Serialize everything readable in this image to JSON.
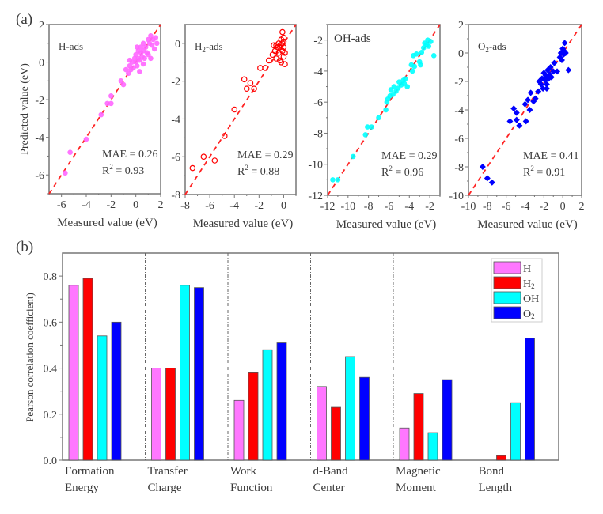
{
  "panel_labels": {
    "a": "(a)",
    "b": "(b)"
  },
  "chart_data": [
    {
      "type": "scatter",
      "title": "H-ads",
      "xlabel": "Measured value (eV)",
      "ylabel": "Predicted value (eV)",
      "xlim": [
        -7,
        2
      ],
      "ylim": [
        -7,
        2
      ],
      "xticks": [
        -6,
        -4,
        -2,
        0,
        2
      ],
      "yticks": [
        -6,
        -4,
        -2,
        0,
        2
      ],
      "marker": "filled-circle",
      "color": "#ff66ff",
      "annotation": {
        "mae": "MAE = 0.26",
        "r2_prefix": "R",
        "r2_sup": "2",
        "r2_value": " = 0.93"
      },
      "points": [
        [
          -5.7,
          -5.9
        ],
        [
          -5.3,
          -4.8
        ],
        [
          -4.0,
          -4.1
        ],
        [
          -2.8,
          -2.8
        ],
        [
          -2.3,
          -2.2
        ],
        [
          -2.0,
          -2.2
        ],
        [
          -2.0,
          -1.8
        ],
        [
          -1.2,
          -1.0
        ],
        [
          -1.0,
          -1.2
        ],
        [
          -0.8,
          -0.4
        ],
        [
          -0.6,
          -0.6
        ],
        [
          -0.5,
          -0.2
        ],
        [
          -0.4,
          -0.4
        ],
        [
          -0.3,
          0.0
        ],
        [
          -0.2,
          -0.3
        ],
        [
          -0.1,
          0.2
        ],
        [
          0.0,
          0.0
        ],
        [
          0.0,
          0.4
        ],
        [
          0.1,
          -0.2
        ],
        [
          0.2,
          0.2
        ],
        [
          0.2,
          0.6
        ],
        [
          0.3,
          0.1
        ],
        [
          0.4,
          0.5
        ],
        [
          0.4,
          0.8
        ],
        [
          0.5,
          0.3
        ],
        [
          0.6,
          0.6
        ],
        [
          0.6,
          1.0
        ],
        [
          0.7,
          0.2
        ],
        [
          0.8,
          0.8
        ],
        [
          0.9,
          0.5
        ],
        [
          1.0,
          1.2
        ],
        [
          1.0,
          0.4
        ],
        [
          1.1,
          1.0
        ],
        [
          1.2,
          1.4
        ],
        [
          1.3,
          0.9
        ],
        [
          1.4,
          1.2
        ],
        [
          1.5,
          0.7
        ],
        [
          1.6,
          1.3
        ],
        [
          1.7,
          1.0
        ],
        [
          0.3,
          -0.5
        ],
        [
          -0.5,
          0.1
        ],
        [
          0.1,
          0.8
        ],
        [
          0.6,
          -0.1
        ],
        [
          1.2,
          0.2
        ]
      ]
    },
    {
      "type": "scatter",
      "title": "H2-ads",
      "title_main": "H",
      "title_sub": "2",
      "title_rest": "-ads",
      "xlabel": "Measured value (eV)",
      "xlim": [
        -8,
        1
      ],
      "ylim": [
        -8,
        1
      ],
      "xticks": [
        -8,
        -6,
        -4,
        -2,
        0
      ],
      "yticks": [
        -8,
        -6,
        -4,
        -2,
        0
      ],
      "marker": "open-circle",
      "color": "#ff0000",
      "annotation": {
        "mae": "MAE = 0.29",
        "r2_prefix": "R",
        "r2_sup": "2",
        "r2_value": " = 0.88"
      },
      "points": [
        [
          -7.4,
          -6.6
        ],
        [
          -6.5,
          -6.0
        ],
        [
          -5.6,
          -6.2
        ],
        [
          -4.8,
          -4.9
        ],
        [
          -4.0,
          -3.5
        ],
        [
          -3.2,
          -1.9
        ],
        [
          -3.0,
          -2.4
        ],
        [
          -2.7,
          -2.1
        ],
        [
          -2.4,
          -2.4
        ],
        [
          -1.9,
          -1.3
        ],
        [
          -1.5,
          -1.3
        ],
        [
          -1.2,
          -0.9
        ],
        [
          -0.9,
          -0.6
        ],
        [
          -0.8,
          -0.1
        ],
        [
          -0.7,
          -0.4
        ],
        [
          -0.6,
          -0.8
        ],
        [
          -0.5,
          -0.2
        ],
        [
          -0.4,
          0.0
        ],
        [
          -0.4,
          -0.5
        ],
        [
          -0.3,
          -0.9
        ],
        [
          -0.3,
          -0.2
        ],
        [
          -0.2,
          0.2
        ],
        [
          -0.2,
          -1.0
        ],
        [
          -0.1,
          -0.4
        ],
        [
          -0.1,
          0.0
        ],
        [
          0.0,
          -0.7
        ],
        [
          0.0,
          0.3
        ],
        [
          0.0,
          -0.2
        ],
        [
          0.1,
          -0.5
        ],
        [
          -0.1,
          0.6
        ],
        [
          0.1,
          -1.1
        ],
        [
          0.0,
          0.1
        ],
        [
          -0.6,
          -0.1
        ]
      ]
    },
    {
      "type": "scatter",
      "title": "OH-ads",
      "xlabel": "Measured value (eV)",
      "xlim": [
        -12,
        -1
      ],
      "ylim": [
        -12,
        -1
      ],
      "xticks": [
        -12,
        -10,
        -8,
        -6,
        -4,
        -2
      ],
      "yticks": [
        -12,
        -10,
        -8,
        -6,
        -4,
        -2
      ],
      "marker": "filled-circle",
      "color": "#00ffff",
      "annotation": {
        "mae": "MAE = 0.29",
        "r2_prefix": "R",
        "r2_sup": "2",
        "r2_value": " = 0.96"
      },
      "points": [
        [
          -11.5,
          -11.0
        ],
        [
          -11.0,
          -11.0
        ],
        [
          -9.5,
          -9.5
        ],
        [
          -8.3,
          -8.1
        ],
        [
          -8.1,
          -7.6
        ],
        [
          -7.7,
          -7.6
        ],
        [
          -7.0,
          -7.0
        ],
        [
          -6.3,
          -6.5
        ],
        [
          -6.2,
          -6.0
        ],
        [
          -6.1,
          -5.8
        ],
        [
          -5.9,
          -5.6
        ],
        [
          -5.8,
          -5.2
        ],
        [
          -5.6,
          -5.5
        ],
        [
          -5.5,
          -5.0
        ],
        [
          -5.3,
          -5.3
        ],
        [
          -5.1,
          -5.1
        ],
        [
          -5.0,
          -4.7
        ],
        [
          -4.8,
          -4.9
        ],
        [
          -4.6,
          -4.6
        ],
        [
          -4.5,
          -4.8
        ],
        [
          -4.4,
          -4.5
        ],
        [
          -4.2,
          -5.0
        ],
        [
          -3.8,
          -3.6
        ],
        [
          -3.7,
          -4.0
        ],
        [
          -3.6,
          -3.0
        ],
        [
          -3.5,
          -3.7
        ],
        [
          -3.3,
          -2.9
        ],
        [
          -3.0,
          -3.4
        ],
        [
          -2.9,
          -3.6
        ],
        [
          -2.8,
          -2.8
        ],
        [
          -2.6,
          -2.5
        ],
        [
          -2.5,
          -2.2
        ],
        [
          -2.3,
          -2.3
        ],
        [
          -2.2,
          -2.0
        ],
        [
          -2.1,
          -2.4
        ],
        [
          -1.9,
          -2.1
        ],
        [
          -1.6,
          -3.0
        ]
      ]
    },
    {
      "type": "scatter",
      "title": "O2-ads",
      "title_main": "O",
      "title_sub": "2",
      "title_rest": "-ads",
      "xlabel": "Measured value (eV)",
      "xlim": [
        -10,
        2
      ],
      "ylim": [
        -10,
        2
      ],
      "xticks": [
        -10,
        -8,
        -6,
        -4,
        -2,
        0,
        2
      ],
      "yticks": [
        -10,
        -8,
        -6,
        -4,
        -2,
        0,
        2
      ],
      "marker": "filled-diamond",
      "color": "#0000ff",
      "annotation": {
        "mae": "MAE = 0.41",
        "r2_prefix": "R",
        "r2_sup": "2",
        "r2_value": " = 0.91"
      },
      "points": [
        [
          -8.5,
          -8.0
        ],
        [
          -8.0,
          -8.8
        ],
        [
          -7.5,
          -9.1
        ],
        [
          -5.6,
          -4.8
        ],
        [
          -5.2,
          -3.9
        ],
        [
          -4.9,
          -4.2
        ],
        [
          -4.9,
          -4.7
        ],
        [
          -4.6,
          -5.1
        ],
        [
          -4.0,
          -3.6
        ],
        [
          -3.9,
          -4.8
        ],
        [
          -3.7,
          -3.3
        ],
        [
          -3.5,
          -4.0
        ],
        [
          -3.4,
          -2.8
        ],
        [
          -3.1,
          -3.4
        ],
        [
          -2.9,
          -3.2
        ],
        [
          -2.6,
          -2.7
        ],
        [
          -2.5,
          -2.0
        ],
        [
          -2.3,
          -2.2
        ],
        [
          -2.2,
          -1.8
        ],
        [
          -2.1,
          -2.5
        ],
        [
          -2.0,
          -1.4
        ],
        [
          -1.9,
          -1.9
        ],
        [
          -1.8,
          -1.6
        ],
        [
          -1.7,
          -2.2
        ],
        [
          -1.6,
          -1.2
        ],
        [
          -1.5,
          -1.8
        ],
        [
          -1.4,
          -1.5
        ],
        [
          -1.3,
          -1.0
        ],
        [
          -1.2,
          -1.7
        ],
        [
          -1.0,
          -1.3
        ],
        [
          -0.9,
          -0.7
        ],
        [
          -0.6,
          -1.3
        ],
        [
          -0.3,
          -0.3
        ],
        [
          -0.2,
          0.0
        ],
        [
          -0.1,
          -0.5
        ],
        [
          0.0,
          0.3
        ],
        [
          0.1,
          -0.1
        ],
        [
          0.2,
          0.1
        ],
        [
          0.2,
          0.7
        ],
        [
          0.3,
          0.0
        ],
        [
          0.6,
          -1.2
        ],
        [
          -1.7,
          -2.5
        ]
      ]
    },
    {
      "type": "bar",
      "ylabel": "Pearson correlation coefficient)",
      "ylim": [
        0,
        0.9
      ],
      "yticks": [
        "0.0",
        "0.2",
        "0.4",
        "0.6",
        "0.8"
      ],
      "grid": false,
      "legend_placement": "top-right",
      "categories": [
        {
          "line1": "Formation",
          "line2": "Energy"
        },
        {
          "line1": "Transfer",
          "line2": "Charge"
        },
        {
          "line1": "Work",
          "line2": "Function"
        },
        {
          "line1": "d-Band",
          "line2": "Center"
        },
        {
          "line1": "Magnetic",
          "line2": "Moment"
        },
        {
          "line1": "Bond",
          "line2": "Length"
        }
      ],
      "series": [
        {
          "name": "H",
          "label_main": "H",
          "label_sub": "",
          "color": "#ff77ff",
          "values": [
            0.76,
            0.4,
            0.26,
            0.32,
            0.14,
            0.0
          ]
        },
        {
          "name": "H2",
          "label_main": "H",
          "label_sub": "2",
          "color": "#ff0000",
          "values": [
            0.79,
            0.4,
            0.38,
            0.23,
            0.29,
            0.02
          ]
        },
        {
          "name": "OH",
          "label_main": "OH",
          "label_sub": "",
          "color": "#00ffff",
          "values": [
            0.54,
            0.76,
            0.48,
            0.45,
            0.12,
            0.25
          ]
        },
        {
          "name": "O2",
          "label_main": "O",
          "label_sub": "2",
          "color": "#0000ff",
          "values": [
            0.6,
            0.75,
            0.51,
            0.36,
            0.35,
            0.53
          ]
        }
      ]
    }
  ]
}
